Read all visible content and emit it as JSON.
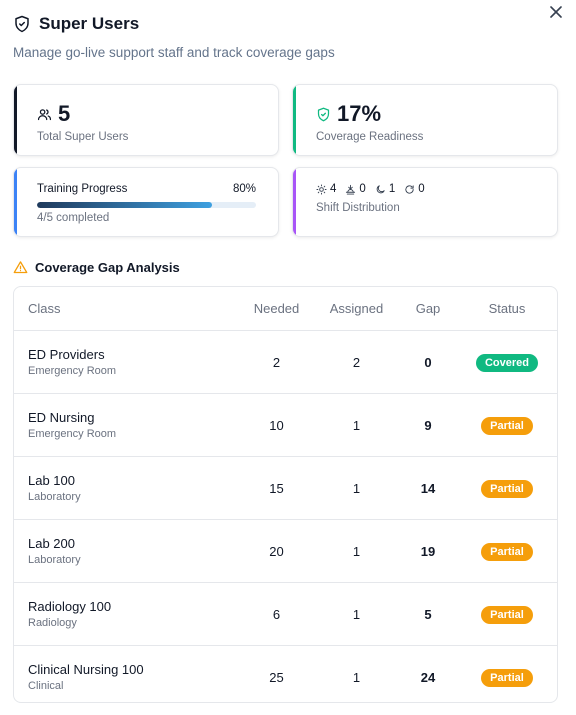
{
  "header": {
    "title": "Super Users",
    "subtitle": "Manage go-live support staff and track coverage gaps"
  },
  "stats": {
    "total_users": {
      "value": "5",
      "label": "Total Super Users",
      "accent": "#111827"
    },
    "coverage": {
      "value": "17%",
      "label": "Coverage Readiness",
      "accent": "#10b981"
    }
  },
  "training": {
    "label": "Training Progress",
    "percent_text": "80%",
    "progress": 0.8,
    "completed_text": "4/5 completed",
    "accent": "#3b82f6"
  },
  "shift": {
    "day_count": "4",
    "swing_count": "0",
    "night_count": "1",
    "rotating_count": "0",
    "label": "Shift Distribution",
    "accent": "#a855f7"
  },
  "gap_analysis": {
    "title": "Coverage Gap Analysis",
    "columns": {
      "class": "Class",
      "needed": "Needed",
      "assigned": "Assigned",
      "gap": "Gap",
      "status": "Status"
    },
    "rows": [
      {
        "name": "ED Providers",
        "dept": "Emergency Room",
        "needed": "2",
        "assigned": "2",
        "gap": "0",
        "status": "Covered",
        "status_color": "#10b981"
      },
      {
        "name": "ED Nursing",
        "dept": "Emergency Room",
        "needed": "10",
        "assigned": "1",
        "gap": "9",
        "status": "Partial",
        "status_color": "#f59e0b"
      },
      {
        "name": "Lab 100",
        "dept": "Laboratory",
        "needed": "15",
        "assigned": "1",
        "gap": "14",
        "status": "Partial",
        "status_color": "#f59e0b"
      },
      {
        "name": "Lab 200",
        "dept": "Laboratory",
        "needed": "20",
        "assigned": "1",
        "gap": "19",
        "status": "Partial",
        "status_color": "#f59e0b"
      },
      {
        "name": "Radiology 100",
        "dept": "Radiology",
        "needed": "6",
        "assigned": "1",
        "gap": "5",
        "status": "Partial",
        "status_color": "#f59e0b"
      },
      {
        "name": "Clinical Nursing 100",
        "dept": "Clinical",
        "needed": "25",
        "assigned": "1",
        "gap": "24",
        "status": "Partial",
        "status_color": "#f59e0b"
      }
    ]
  },
  "icons": {
    "title": "shield-icon",
    "close": "close-icon",
    "users": "users-icon",
    "coverage": "shield-check-icon",
    "day": "sun-icon",
    "swing": "sunset-icon",
    "night": "moon-icon",
    "rotating": "rotate-icon",
    "warning": "warning-triangle-icon"
  }
}
